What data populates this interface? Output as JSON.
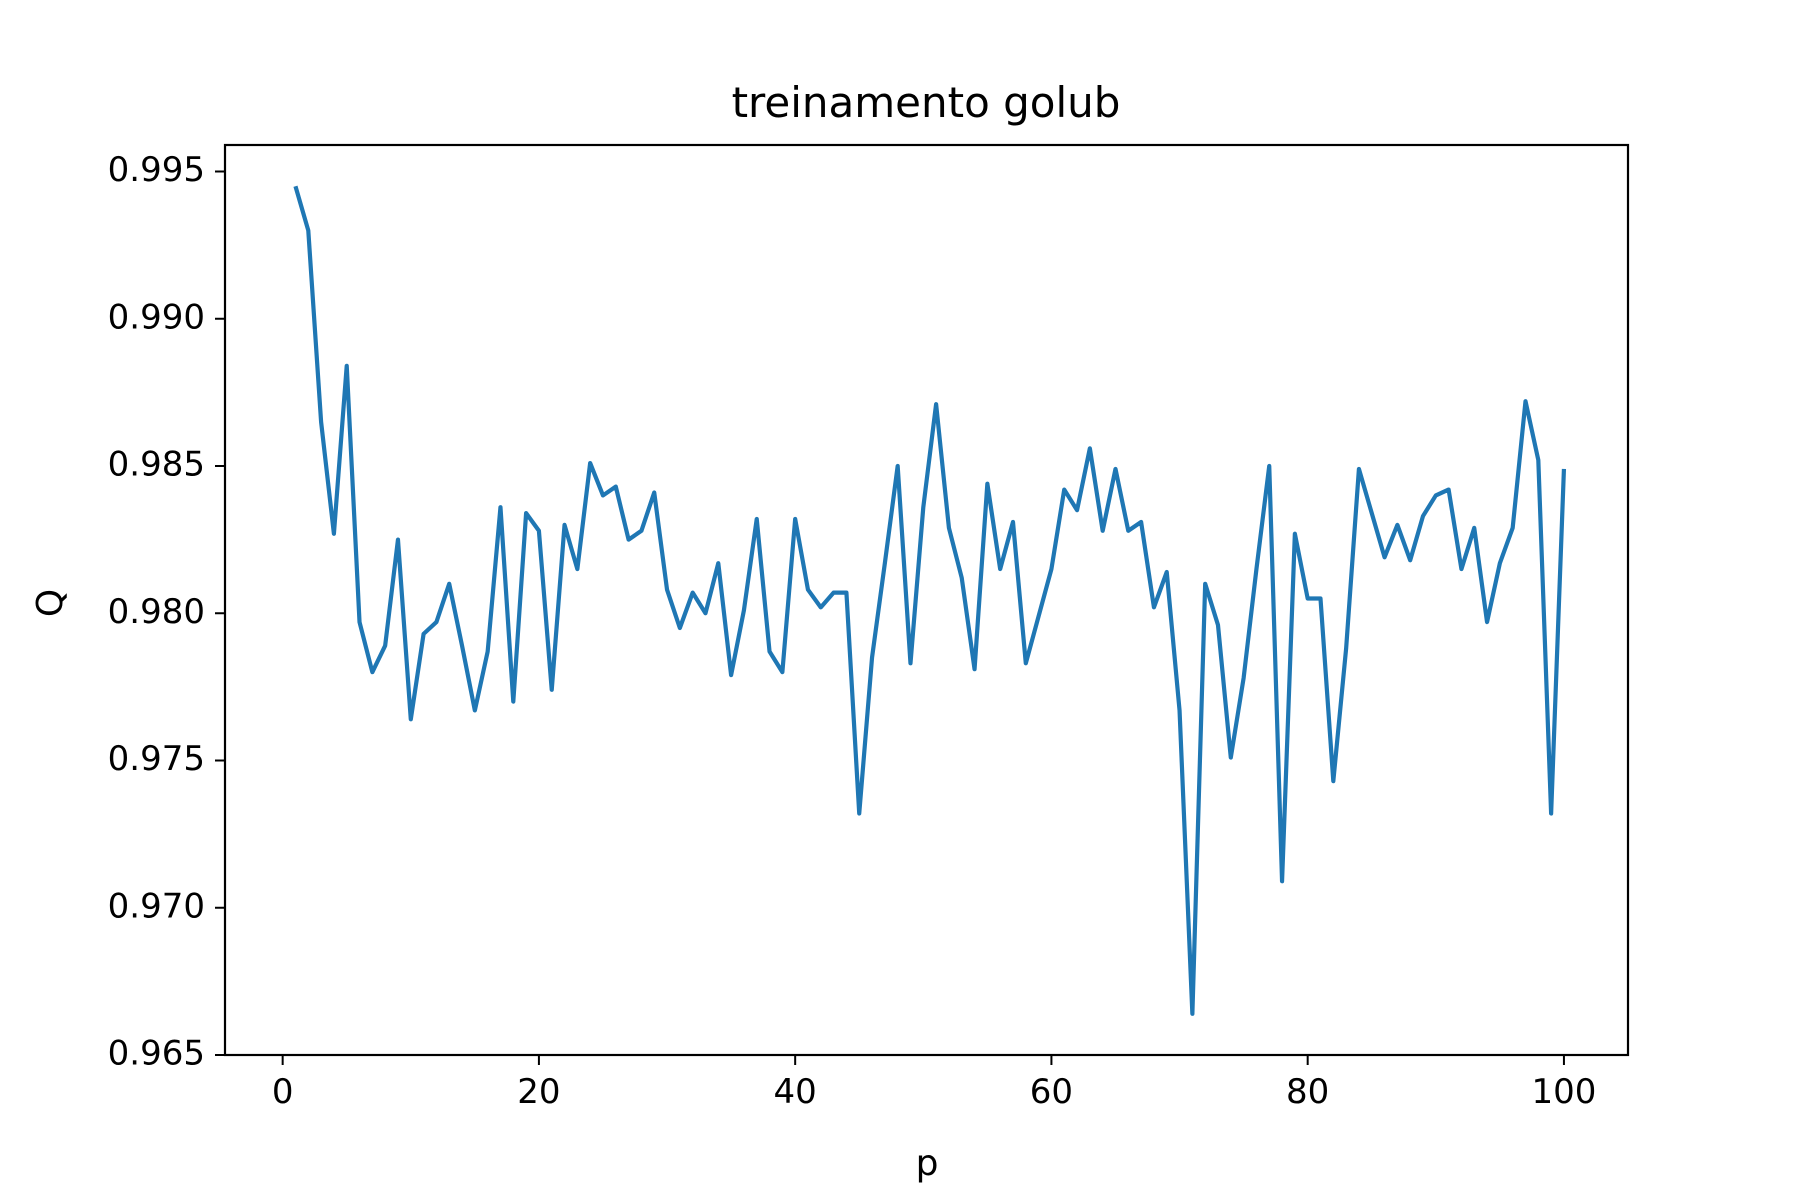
{
  "chart_data": {
    "type": "line",
    "title": "treinamento golub",
    "xlabel": "p",
    "ylabel": "Q",
    "xlim": [
      -4.5,
      105
    ],
    "ylim": [
      0.965,
      0.9959
    ],
    "xticks": [
      0,
      20,
      40,
      60,
      80,
      100
    ],
    "xtick_labels": [
      "0",
      "20",
      "40",
      "60",
      "80",
      "100"
    ],
    "yticks": [
      0.965,
      0.97,
      0.975,
      0.98,
      0.985,
      0.99,
      0.995
    ],
    "ytick_labels": [
      "0.965",
      "0.970",
      "0.975",
      "0.980",
      "0.985",
      "0.990",
      "0.995"
    ],
    "grid": false,
    "line_color": "#1f77b4",
    "x": [
      1,
      2,
      3,
      4,
      5,
      6,
      7,
      8,
      9,
      10,
      11,
      12,
      13,
      14,
      15,
      16,
      17,
      18,
      19,
      20,
      21,
      22,
      23,
      24,
      25,
      26,
      27,
      28,
      29,
      30,
      31,
      32,
      33,
      34,
      35,
      36,
      37,
      38,
      39,
      40,
      41,
      42,
      43,
      44,
      45,
      46,
      47,
      48,
      49,
      50,
      51,
      52,
      53,
      54,
      55,
      56,
      57,
      58,
      59,
      60,
      61,
      62,
      63,
      64,
      65,
      66,
      67,
      68,
      69,
      70,
      71,
      72,
      73,
      74,
      75,
      76,
      77,
      78,
      79,
      80,
      81,
      82,
      83,
      84,
      85,
      86,
      87,
      88,
      89,
      90,
      91,
      92,
      93,
      94,
      95,
      96,
      97,
      98,
      99,
      100
    ],
    "y": [
      0.9945,
      0.993,
      0.9865,
      0.9827,
      0.9884,
      0.9797,
      0.978,
      0.9789,
      0.9825,
      0.9764,
      0.9793,
      0.9797,
      0.981,
      0.9789,
      0.9767,
      0.9787,
      0.9836,
      0.977,
      0.9834,
      0.9828,
      0.9774,
      0.983,
      0.9815,
      0.9851,
      0.984,
      0.9843,
      0.9825,
      0.9828,
      0.9841,
      0.9808,
      0.9795,
      0.9807,
      0.98,
      0.9817,
      0.9779,
      0.9801,
      0.9832,
      0.9787,
      0.978,
      0.9832,
      0.9808,
      0.9802,
      0.9807,
      0.9807,
      0.9732,
      0.9785,
      0.9817,
      0.985,
      0.9783,
      0.9836,
      0.9871,
      0.9829,
      0.9812,
      0.9781,
      0.9844,
      0.9815,
      0.9831,
      0.9783,
      0.9799,
      0.9815,
      0.9842,
      0.9835,
      0.9856,
      0.9828,
      0.9849,
      0.9828,
      0.9831,
      0.9802,
      0.9814,
      0.9767,
      0.9664,
      0.981,
      0.9796,
      0.9751,
      0.9778,
      0.9815,
      0.985,
      0.9709,
      0.9827,
      0.9805,
      0.9805,
      0.9743,
      0.9788,
      0.9849,
      0.9834,
      0.9819,
      0.983,
      0.9818,
      0.9833,
      0.984,
      0.9842,
      0.9815,
      0.9829,
      0.9797,
      0.9817,
      0.9829,
      0.9872,
      0.9852,
      0.9732,
      0.9849
    ]
  }
}
